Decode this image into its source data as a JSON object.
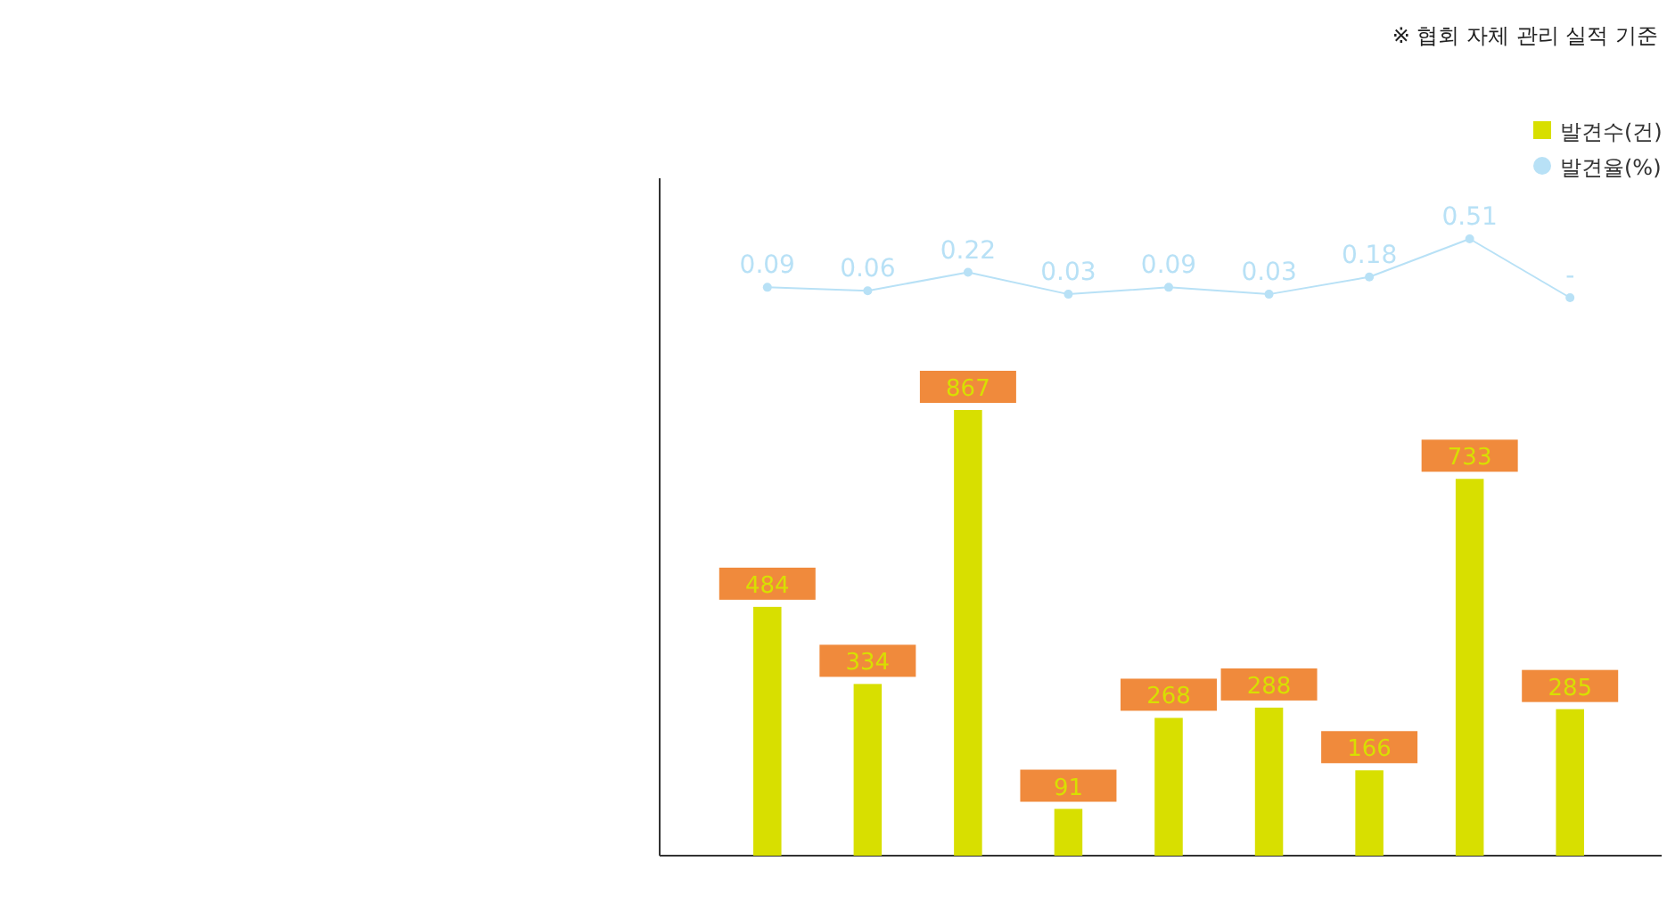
{
  "chart_data": [
    {
      "type": "line",
      "categories": [
        null,
        null,
        null,
        null,
        null,
        null,
        null,
        null,
        null
      ],
      "series": [
        {
          "name": "발견율(%)",
          "color": "#b8e1f6",
          "values": [
            0.09,
            0.06,
            0.22,
            0.03,
            0.09,
            0.03,
            0.18,
            0.51,
            0
          ],
          "value_labels": [
            "0.09",
            "0.06",
            "0.22",
            "0.03",
            "0.09",
            "0.03",
            "0.18",
            "0.51",
            "-"
          ]
        }
      ],
      "marker": "circle",
      "legend": "top right",
      "annotations": [
        "※ 협회 자체 관리 실적 기준"
      ]
    },
    {
      "type": "bar",
      "categories": [
        null,
        null,
        null,
        null,
        null,
        null,
        null,
        null,
        null
      ],
      "series": [
        {
          "name": "발견수(건)",
          "color": "#d8df00",
          "values": [
            484,
            334,
            867,
            91,
            268,
            288,
            166,
            733,
            285
          ]
        }
      ],
      "data_labels": true,
      "legend": "top right"
    }
  ]
}
